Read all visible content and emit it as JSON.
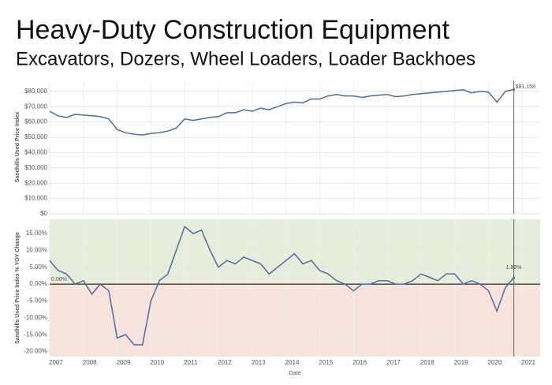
{
  "title": "Heavy-Duty Construction Equipment",
  "subtitle": "Excavators, Dozers, Wheel Loaders, Loader Backhoes",
  "chart_data": [
    {
      "type": "line",
      "y_label": "Sandhills Used Price Index",
      "color": "#4e6d9c",
      "grid": true,
      "x": [
        2007,
        2007.25,
        2007.5,
        2007.75,
        2008,
        2008.25,
        2008.5,
        2008.75,
        2009,
        2009.25,
        2009.5,
        2009.75,
        2010,
        2010.25,
        2010.5,
        2010.75,
        2011,
        2011.25,
        2011.5,
        2011.75,
        2012,
        2012.25,
        2012.5,
        2012.75,
        2013,
        2013.25,
        2013.5,
        2013.75,
        2014,
        2014.25,
        2014.5,
        2014.75,
        2015,
        2015.25,
        2015.5,
        2015.75,
        2016,
        2016.25,
        2016.5,
        2016.75,
        2017,
        2017.25,
        2017.5,
        2017.75,
        2018,
        2018.25,
        2018.5,
        2018.75,
        2019,
        2019.25,
        2019.5,
        2019.75,
        2020,
        2020.25,
        2020.5,
        2020.75
      ],
      "values": [
        67000,
        64000,
        63000,
        65000,
        64500,
        64000,
        63500,
        62000,
        55000,
        53000,
        52000,
        51500,
        52500,
        53000,
        54000,
        56000,
        62000,
        61000,
        62000,
        63000,
        63500,
        66000,
        66000,
        68000,
        67000,
        69000,
        68000,
        70000,
        72000,
        73000,
        72500,
        75000,
        75000,
        77000,
        78000,
        77000,
        77000,
        76000,
        77000,
        77500,
        78000,
        76500,
        77000,
        78000,
        78500,
        79000,
        79500,
        80000,
        80500,
        81000,
        79000,
        80000,
        79500,
        73000,
        80000,
        81158
      ],
      "xlim": [
        2007,
        2021.53
      ],
      "xticks": [
        2007,
        2008,
        2009,
        2010,
        2011,
        2012,
        2013,
        2014,
        2015,
        2016,
        2017,
        2018,
        2019,
        2020,
        2021
      ],
      "ylim": [
        0,
        87100
      ],
      "yticks": [
        {
          "value": 0,
          "label": "$0"
        },
        {
          "value": 10000,
          "label": "$10,000"
        },
        {
          "value": 20000,
          "label": "$20,000"
        },
        {
          "value": 30000,
          "label": "$30,000"
        },
        {
          "value": 40000,
          "label": "$40,000"
        },
        {
          "value": 50000,
          "label": "$50,000"
        },
        {
          "value": 60000,
          "label": "$60,000"
        },
        {
          "value": 70000,
          "label": "$70,000"
        },
        {
          "value": 80000,
          "label": "$80,000"
        }
      ],
      "reference_x": 2020.75,
      "annotations": [
        {
          "x": 2020.75,
          "y": 81158,
          "label": "$81,158"
        }
      ]
    },
    {
      "type": "line",
      "y_label": "Sandhills Used Price Index % YOY Change",
      "x_label": "Date",
      "color": "#4e6d9c",
      "grid": true,
      "positive_color": "#e7eddb",
      "negative_color": "#f7e3dc",
      "x": [
        2007,
        2007.25,
        2007.5,
        2007.75,
        2008,
        2008.25,
        2008.5,
        2008.75,
        2009,
        2009.25,
        2009.5,
        2009.75,
        2010,
        2010.25,
        2010.5,
        2010.75,
        2011,
        2011.25,
        2011.5,
        2011.75,
        2012,
        2012.25,
        2012.5,
        2012.75,
        2013,
        2013.25,
        2013.5,
        2013.75,
        2014,
        2014.25,
        2014.5,
        2014.75,
        2015,
        2015.25,
        2015.5,
        2015.75,
        2016,
        2016.25,
        2016.5,
        2016.75,
        2017,
        2017.25,
        2017.5,
        2017.75,
        2018,
        2018.25,
        2018.5,
        2018.75,
        2019,
        2019.25,
        2019.5,
        2019.75,
        2020,
        2020.25,
        2020.5,
        2020.75
      ],
      "values": [
        7,
        4,
        3,
        0,
        1,
        -3,
        0,
        -2,
        -16,
        -15,
        -18,
        -18,
        -5,
        1,
        3,
        10,
        17,
        15,
        16,
        10,
        5,
        7,
        6,
        8,
        7,
        6,
        3,
        5,
        7,
        9,
        6,
        7,
        4,
        3,
        1,
        0,
        -2,
        0,
        0,
        1,
        1,
        0,
        0,
        1,
        3,
        2,
        1,
        3,
        3,
        0,
        1,
        0,
        -2,
        -8,
        -1,
        1.89
      ],
      "xlim": [
        2007,
        2021.53
      ],
      "xticks": [
        2007,
        2008,
        2009,
        2010,
        2011,
        2012,
        2013,
        2014,
        2015,
        2016,
        2017,
        2018,
        2019,
        2020,
        2021
      ],
      "ylim": [
        -21.5,
        19.2
      ],
      "yticks": [
        {
          "value": -20,
          "label": "-20.00%"
        },
        {
          "value": -15,
          "label": "-15.00%"
        },
        {
          "value": -10,
          "label": "-10.00%"
        },
        {
          "value": -5,
          "label": "-5.00%"
        },
        {
          "value": 0,
          "label": "0.00%"
        },
        {
          "value": 5,
          "label": "5.00%"
        },
        {
          "value": 10,
          "label": "10.00%"
        },
        {
          "value": 15,
          "label": "15.00%"
        }
      ],
      "zero_line": {
        "value": 0,
        "label": "0.00%"
      },
      "reference_x": 2020.75,
      "annotations": [
        {
          "x": 2020.75,
          "y": 1.89,
          "label": "1.89%"
        }
      ]
    }
  ]
}
